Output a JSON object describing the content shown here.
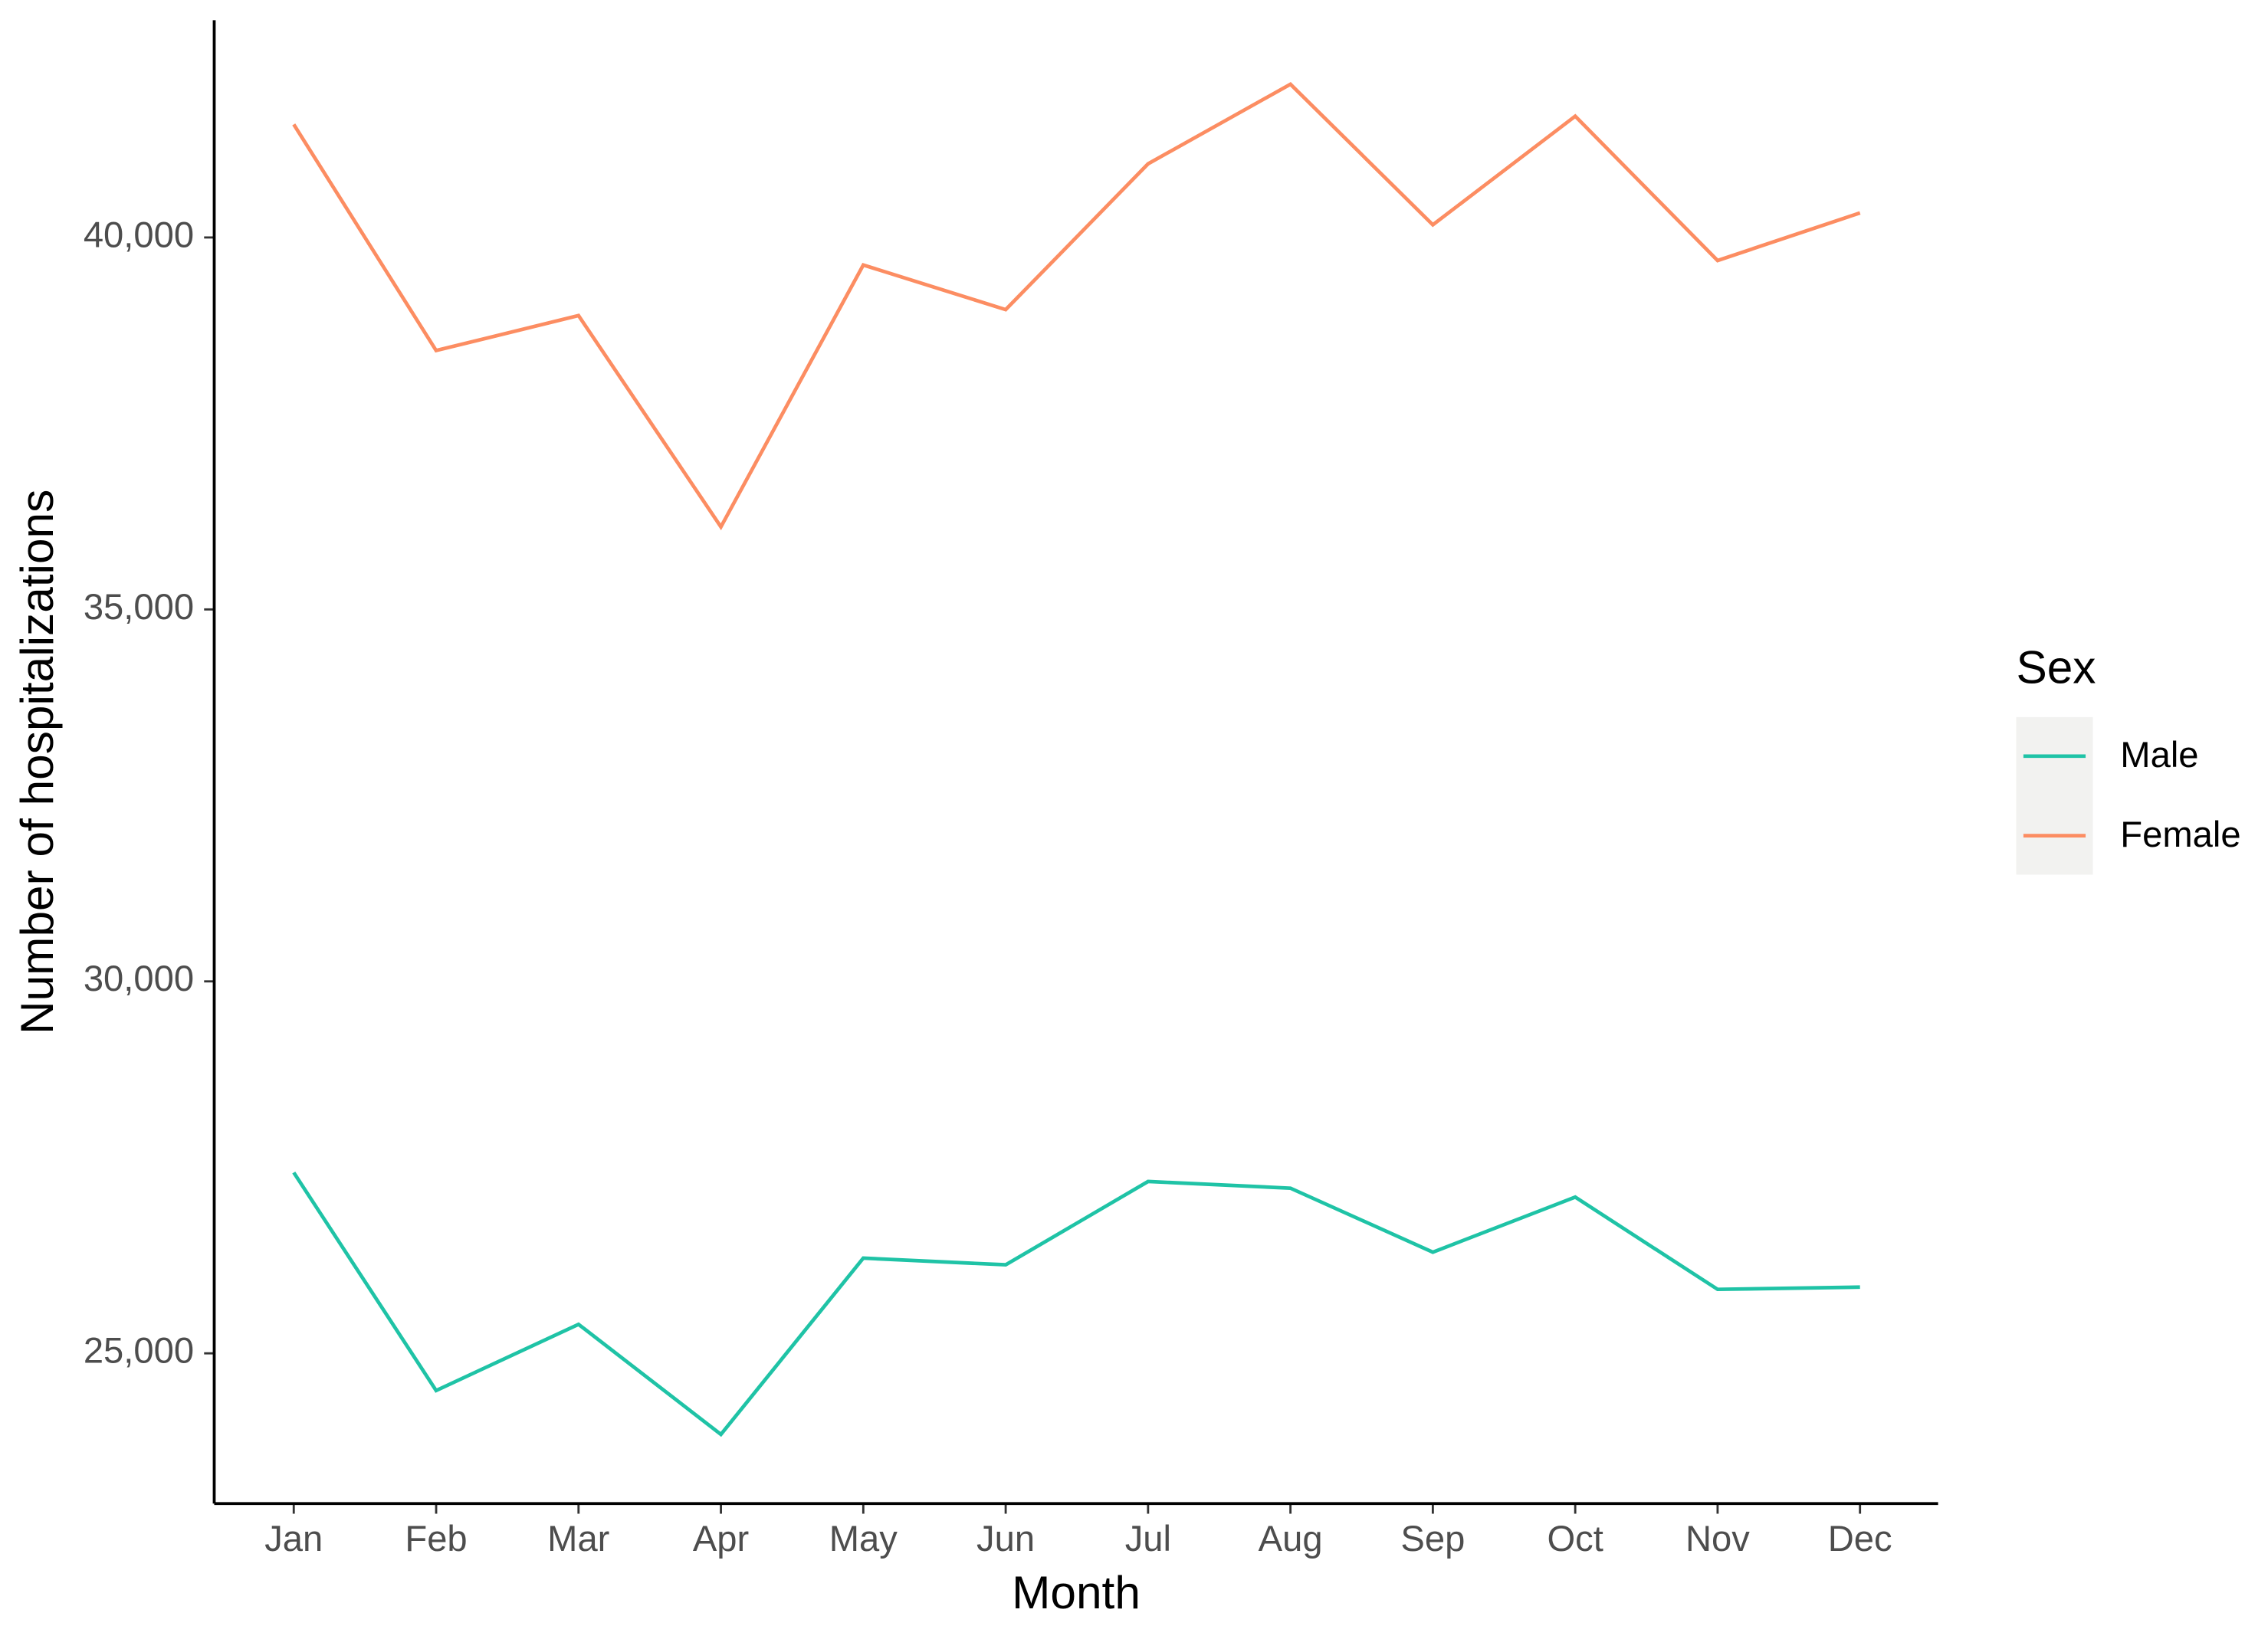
{
  "chart_data": {
    "type": "line",
    "x_label": "Month",
    "y_label": "Number of hospitalizations",
    "legend_title": "Sex",
    "categories": [
      "Jan",
      "Feb",
      "Mar",
      "Apr",
      "May",
      "Jun",
      "Jul",
      "Aug",
      "Sep",
      "Oct",
      "Nov",
      "Dec"
    ],
    "series": [
      {
        "name": "Male",
        "color": "#1fc3a6",
        "values": [
          27430,
          24500,
          25390,
          23910,
          26280,
          26190,
          27310,
          27220,
          26360,
          27100,
          25860,
          25890
        ]
      },
      {
        "name": "Female",
        "color": "#fc8d62",
        "values": [
          41520,
          38480,
          38950,
          36110,
          39630,
          39030,
          40990,
          42060,
          40170,
          41630,
          39690,
          40330
        ]
      }
    ],
    "ylim": [
      22980,
      42920
    ],
    "yticks": [
      {
        "value": 25000,
        "label": "25,000"
      },
      {
        "value": 30000,
        "label": "30,000"
      },
      {
        "value": 35000,
        "label": "35,000"
      },
      {
        "value": 40000,
        "label": "40,000"
      }
    ],
    "legend_position": "right",
    "grid": false
  }
}
